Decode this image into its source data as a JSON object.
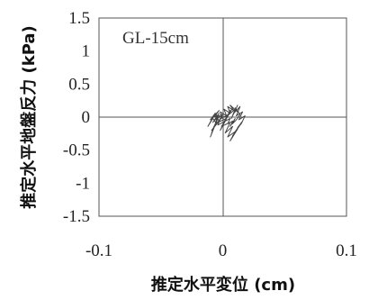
{
  "chart_data": {
    "type": "line",
    "annotation": "GL-15cm",
    "xlabel": "推定水平変位 (cm)",
    "ylabel": "推定水平地盤反力 (kPa)",
    "xlim": [
      -0.1,
      0.1
    ],
    "ylim": [
      -1.5,
      1.5
    ],
    "x_tick_labels": [
      "-0.1",
      "0",
      "0.1"
    ],
    "y_tick_labels": [
      "1.5",
      "1",
      "0.5",
      "0",
      "-0.5",
      "-1",
      "-1.5"
    ],
    "grid": false,
    "zero_lines": true,
    "series": [
      {
        "color": "#444444",
        "x": [
          0.0,
          -0.003,
          -0.006,
          -0.004,
          -0.008,
          -0.005,
          -0.009,
          -0.006,
          -0.01,
          -0.007,
          -0.004,
          -0.008,
          -0.003,
          -0.006,
          -0.001,
          -0.004,
          0.002,
          -0.002,
          0.004,
          0.001,
          0.006,
          0.003,
          0.008,
          0.005,
          0.01,
          0.007,
          0.012,
          0.009,
          0.014,
          0.011,
          0.016,
          0.013,
          0.018,
          0.015,
          0.012,
          0.016,
          0.01,
          0.014,
          0.008,
          0.012,
          0.006,
          0.01,
          0.004,
          0.008,
          0.002,
          0.006,
          -0.001,
          0.003,
          -0.004,
          0.0,
          -0.007,
          -0.003,
          -0.01,
          -0.006,
          -0.012,
          -0.008,
          -0.005,
          -0.009,
          -0.003,
          -0.006,
          0.0,
          -0.002,
          0.003,
          0.001,
          0.006,
          0.004,
          0.009,
          0.006,
          0.012,
          0.01,
          0.014,
          0.011,
          0.008,
          0.01,
          0.006,
          0.008,
          0.004,
          0.006,
          0.002,
          0.004,
          0.0
        ],
        "y": [
          0.0,
          -0.05,
          -0.12,
          -0.02,
          -0.18,
          -0.06,
          -0.24,
          -0.1,
          -0.3,
          -0.16,
          0.02,
          -0.08,
          0.06,
          -0.04,
          0.02,
          -0.12,
          -0.06,
          -0.2,
          0.04,
          -0.08,
          0.1,
          -0.02,
          0.14,
          0.04,
          0.12,
          -0.02,
          0.18,
          0.06,
          0.16,
          0.02,
          0.08,
          -0.04,
          0.02,
          -0.1,
          -0.16,
          -0.06,
          -0.22,
          -0.12,
          -0.28,
          -0.18,
          -0.36,
          -0.22,
          -0.3,
          -0.14,
          -0.24,
          -0.08,
          -0.14,
          -0.02,
          -0.08,
          0.04,
          0.0,
          0.1,
          -0.04,
          0.06,
          -0.14,
          -0.02,
          -0.1,
          -0.2,
          -0.06,
          0.04,
          -0.02,
          0.08,
          0.02,
          0.12,
          0.06,
          0.16,
          0.1,
          0.18,
          0.08,
          0.14,
          0.04,
          -0.04,
          -0.1,
          -0.02,
          -0.14,
          -0.06,
          -0.1,
          -0.02,
          -0.06,
          0.02,
          0.0
        ]
      }
    ]
  }
}
